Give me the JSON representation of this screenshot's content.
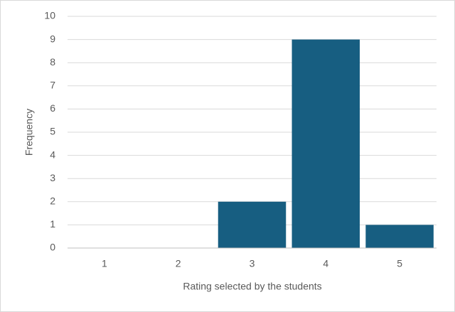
{
  "chart_data": {
    "type": "bar",
    "x_label": "Rating selected by the students",
    "y_label": "Frequency",
    "categories": [
      "1",
      "2",
      "3",
      "4",
      "5"
    ],
    "values": [
      0,
      0,
      2,
      9,
      1
    ],
    "color": "#175e81",
    "ylim": [
      0,
      10
    ],
    "yticks": [
      0,
      1,
      2,
      3,
      4,
      5,
      6,
      7,
      8,
      9,
      10
    ],
    "grid": true
  }
}
